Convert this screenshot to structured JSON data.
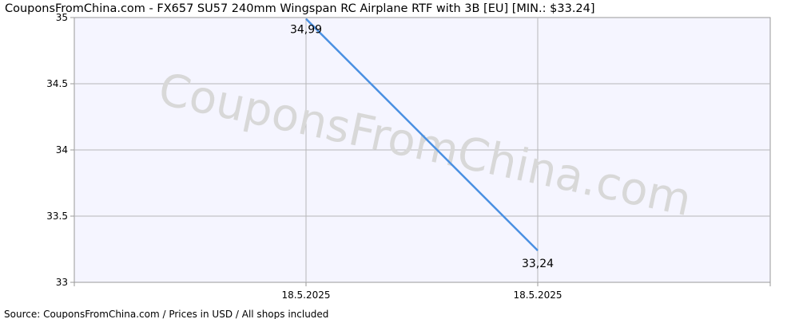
{
  "chart_data": {
    "type": "line",
    "title": "CouponsFromChina.com - FX657 SU57 240mm Wingspan RC Airplane RTF with 3B [EU] [MIN.: $33.24]",
    "x": [
      "18.5.2025",
      "18.5.2025"
    ],
    "series": [
      {
        "values": [
          34.99,
          33.24
        ],
        "labels": [
          "34,99",
          "33,24"
        ],
        "color": "#4a90e2"
      }
    ],
    "yticks": [
      "35",
      "34.5",
      "34",
      "33.5",
      "33"
    ],
    "ylim": [
      33,
      35
    ],
    "xlabel": "",
    "ylabel": "",
    "grid": true,
    "watermark": "CouponsFromChina.com",
    "footer": "Source: CouponsFromChina.com / Prices in USD / All shops included"
  }
}
